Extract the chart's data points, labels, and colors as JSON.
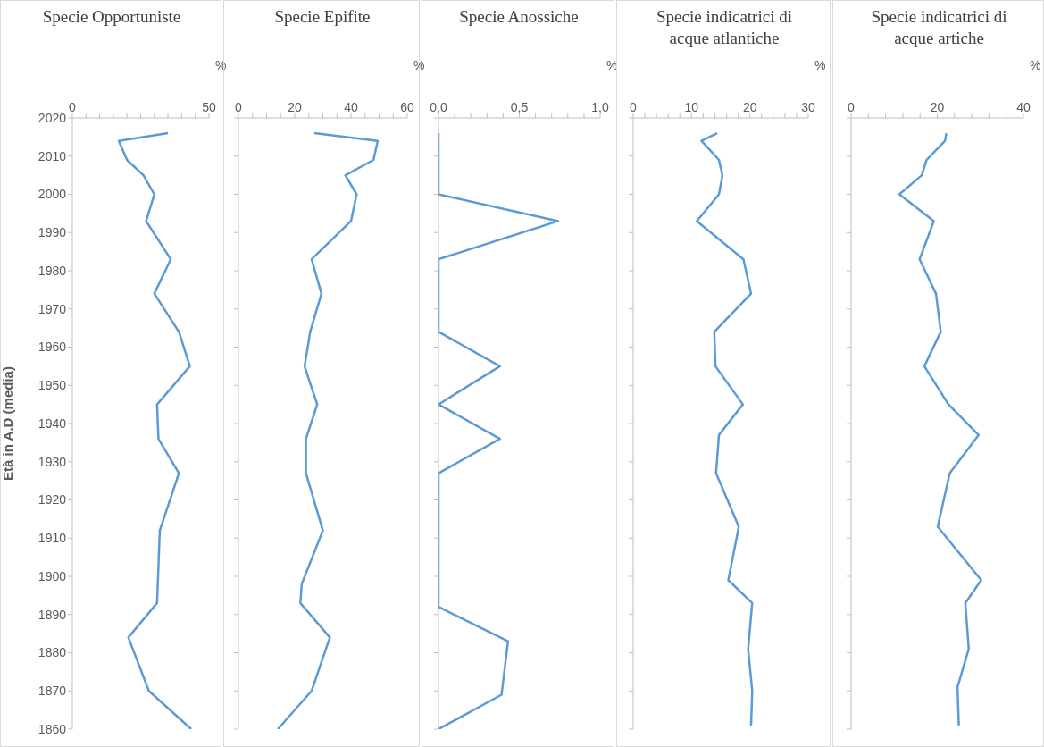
{
  "chart_data": [
    {
      "type": "line",
      "title": "Specie Opportuniste",
      "xlabel": "%",
      "ylabel": "Età in A.D (media)",
      "orientation": "horizontal",
      "xlim": [
        0,
        50
      ],
      "xticks": [
        0,
        {
          "value": 5,
          "label": null
        },
        {
          "value": 10,
          "label": null
        },
        {
          "value": 15,
          "label": null
        },
        {
          "value": 20,
          "label": null
        },
        {
          "value": 25,
          "label": null
        },
        {
          "value": 30,
          "label": null
        },
        {
          "value": 35,
          "label": null
        },
        {
          "value": 40,
          "label": null
        },
        {
          "value": 45,
          "label": null
        },
        50
      ],
      "ylim": [
        1860,
        2020
      ],
      "yticks": [
        1860,
        1870,
        1880,
        1890,
        1900,
        1910,
        1920,
        1930,
        1940,
        1950,
        1960,
        1970,
        1980,
        1990,
        2000,
        2010,
        2020
      ],
      "series": [
        {
          "color": "#5b9bd5",
          "x": [
            2016,
            2014,
            2009,
            2005,
            2000,
            1993,
            1983,
            1974,
            1964,
            1955,
            1945,
            1936,
            1927,
            1912,
            1893,
            1884,
            1870,
            1860
          ],
          "values": [
            35,
            17,
            20,
            26,
            30,
            27,
            36,
            30,
            39,
            43,
            31,
            31.5,
            39,
            32,
            31,
            20.5,
            28,
            43.5
          ]
        }
      ]
    },
    {
      "type": "line",
      "title": "Specie Epifite",
      "xlabel": "%",
      "orientation": "horizontal",
      "tick_labels": "x",
      "xlim": [
        0,
        60
      ],
      "xticks": [
        0,
        {
          "value": 5,
          "label": null
        },
        {
          "value": 10,
          "label": null
        },
        {
          "value": 15,
          "label": null
        },
        20,
        {
          "value": 25,
          "label": null
        },
        {
          "value": 30,
          "label": null
        },
        {
          "value": 35,
          "label": null
        },
        40,
        {
          "value": 45,
          "label": null
        },
        {
          "value": 50,
          "label": null
        },
        {
          "value": 55,
          "label": null
        },
        60
      ],
      "ylim": [
        1860,
        2020
      ],
      "yticks": [
        1860,
        1870,
        1880,
        1890,
        1900,
        1910,
        1920,
        1930,
        1940,
        1950,
        1960,
        1970,
        1980,
        1990,
        2000,
        2010,
        2020
      ],
      "series": [
        {
          "color": "#5b9bd5",
          "x": [
            2016,
            2014,
            2009,
            2005,
            2000,
            1993,
            1983,
            1974,
            1964,
            1955,
            1945,
            1936,
            1927,
            1912,
            1898,
            1893,
            1884,
            1870,
            1860
          ],
          "values": [
            27,
            49.5,
            48,
            38,
            42,
            40,
            26,
            29.5,
            25.5,
            23.5,
            28,
            24,
            24,
            30,
            22.5,
            22,
            32.5,
            26,
            14
          ]
        }
      ]
    },
    {
      "type": "line",
      "title": "Specie Anossiche",
      "xlabel": "%",
      "orientation": "horizontal",
      "tick_labels": "x",
      "xlim": [
        0,
        1
      ],
      "xticks": [
        {
          "value": 0,
          "label": "0,0"
        },
        {
          "value": 0.1,
          "label": null
        },
        {
          "value": 0.2,
          "label": null
        },
        {
          "value": 0.3,
          "label": null
        },
        {
          "value": 0.4,
          "label": null
        },
        {
          "value": 0.5,
          "label": "0,5"
        },
        {
          "value": 0.6,
          "label": null
        },
        {
          "value": 0.7,
          "label": null
        },
        {
          "value": 0.8,
          "label": null
        },
        {
          "value": 0.9,
          "label": null
        },
        {
          "value": 1,
          "label": "1,0"
        }
      ],
      "ylim": [
        1860,
        2020
      ],
      "yticks": [
        1860,
        1870,
        1880,
        1890,
        1900,
        1910,
        1920,
        1930,
        1940,
        1950,
        1960,
        1970,
        1980,
        1990,
        2000,
        2010,
        2020
      ],
      "series": [
        {
          "color": "#5b9bd5",
          "x": [
            2016,
            2000,
            1993,
            1983,
            1964,
            1955,
            1945,
            1936,
            1927,
            1892,
            1883,
            1869,
            1860
          ],
          "values": [
            0,
            0,
            0.74,
            0,
            0,
            0.38,
            0,
            0.38,
            0,
            0,
            0.43,
            0.39,
            0
          ]
        }
      ]
    },
    {
      "type": "line",
      "title": "Specie indicatrici di acque atlantiche",
      "xlabel": "%",
      "orientation": "horizontal",
      "tick_labels": "x",
      "xlim": [
        0,
        30
      ],
      "xticks": [
        0,
        {
          "value": 2,
          "label": null
        },
        {
          "value": 4,
          "label": null
        },
        {
          "value": 6,
          "label": null
        },
        {
          "value": 8,
          "label": null
        },
        10,
        {
          "value": 12,
          "label": null
        },
        {
          "value": 14,
          "label": null
        },
        {
          "value": 16,
          "label": null
        },
        {
          "value": 18,
          "label": null
        },
        20,
        {
          "value": 22,
          "label": null
        },
        {
          "value": 24,
          "label": null
        },
        {
          "value": 26,
          "label": null
        },
        {
          "value": 28,
          "label": null
        },
        30
      ],
      "ylim": [
        1860,
        2020
      ],
      "yticks": [
        1860,
        1870,
        1880,
        1890,
        1900,
        1910,
        1920,
        1930,
        1940,
        1950,
        1960,
        1970,
        1980,
        1990,
        2000,
        2010,
        2020
      ],
      "series": [
        {
          "color": "#5b9bd5",
          "x": [
            2016,
            2014,
            2009,
            2005,
            2000,
            1993,
            1983,
            1974,
            1964,
            1955,
            1945,
            1937,
            1927,
            1913,
            1899,
            1893,
            1881,
            1870,
            1861
          ],
          "values": [
            14.4,
            11.7,
            14.7,
            15.3,
            14.7,
            10.9,
            18.9,
            20.2,
            13.9,
            14.1,
            18.8,
            14.7,
            14.2,
            18.1,
            16.3,
            20.4,
            19.7,
            20.4,
            20.2
          ]
        }
      ]
    },
    {
      "type": "line",
      "title": "Specie indicatrici di acque artiche",
      "xlabel": "%",
      "orientation": "horizontal",
      "tick_labels": "x",
      "xlim": [
        0,
        40
      ],
      "xticks": [
        0,
        {
          "value": 4,
          "label": null
        },
        {
          "value": 8,
          "label": null
        },
        {
          "value": 12,
          "label": null
        },
        {
          "value": 16,
          "label": null
        },
        20,
        {
          "value": 24,
          "label": null
        },
        {
          "value": 28,
          "label": null
        },
        {
          "value": 32,
          "label": null
        },
        {
          "value": 36,
          "label": null
        },
        40
      ],
      "ylim": [
        1860,
        2020
      ],
      "yticks": [
        1860,
        1870,
        1880,
        1890,
        1900,
        1910,
        1920,
        1930,
        1940,
        1950,
        1960,
        1970,
        1980,
        1990,
        2000,
        2010,
        2020
      ],
      "series": [
        {
          "color": "#5b9bd5",
          "x": [
            2016,
            2014,
            2009,
            2005,
            2000,
            1993,
            1983,
            1974,
            1964,
            1955,
            1945,
            1937,
            1927,
            1913,
            1899,
            1893,
            1881,
            1871,
            1861
          ],
          "values": [
            22.1,
            21.8,
            17.5,
            16.4,
            11.2,
            19.2,
            15.9,
            19.7,
            20.8,
            17,
            22.6,
            29.6,
            22.9,
            20.1,
            30.2,
            26.5,
            27.3,
            24.7,
            25
          ]
        }
      ]
    }
  ]
}
